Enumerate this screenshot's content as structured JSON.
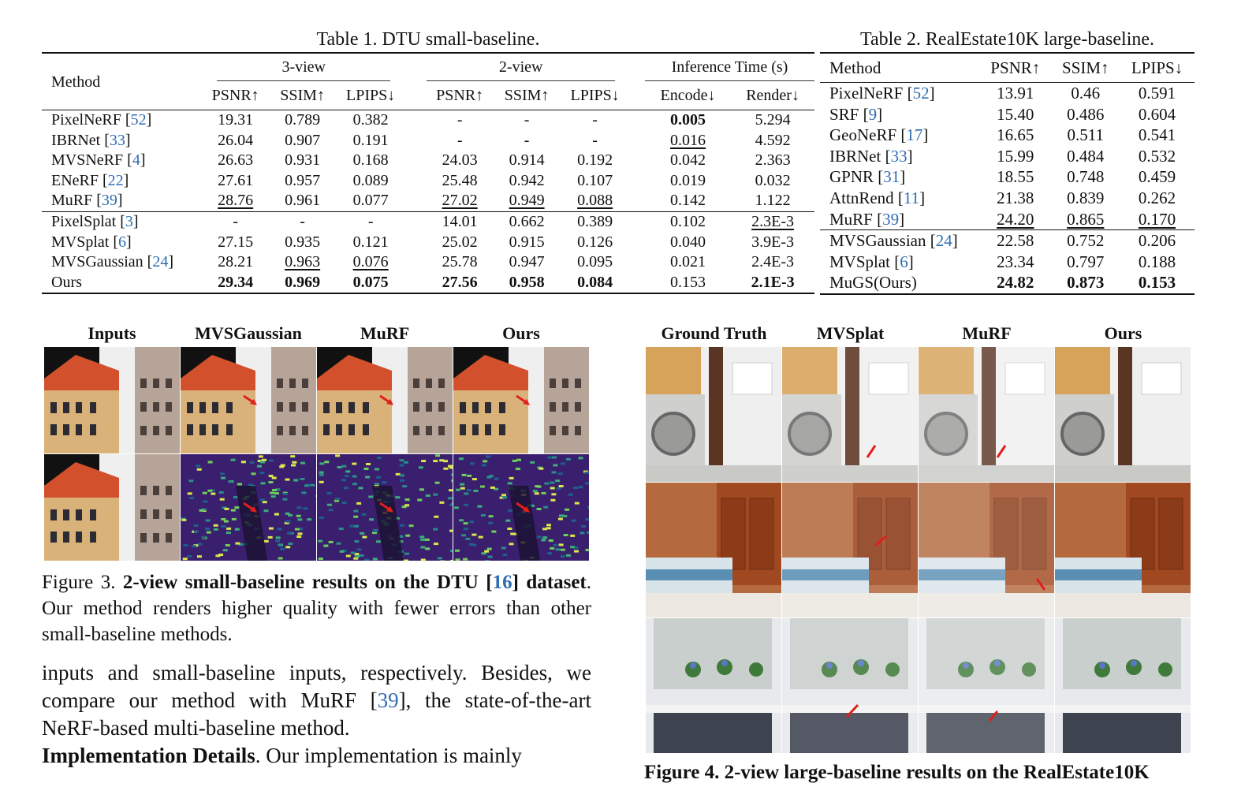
{
  "table1": {
    "caption": "Table 1. DTU small-baseline.",
    "method_header": "Method",
    "groups": [
      "3-view",
      "2-view",
      "Inference Time (s)"
    ],
    "subheaders": [
      "PSNR↑",
      "SSIM↑",
      "LPIPS↓",
      "PSNR↑",
      "SSIM↑",
      "LPIPS↓",
      "Encode↓",
      "Render↓"
    ],
    "rows_nerf": [
      {
        "name": "PixelNeRF",
        "ref": "52",
        "cells": [
          "19.31",
          "0.789",
          "0.382",
          "-",
          "-",
          "-",
          "0.005",
          "5.294"
        ],
        "style": [
          "",
          "",
          "",
          "",
          "",
          "",
          "b",
          ""
        ]
      },
      {
        "name": "IBRNet",
        "ref": "33",
        "cells": [
          "26.04",
          "0.907",
          "0.191",
          "-",
          "-",
          "-",
          "0.016",
          "4.592"
        ],
        "style": [
          "",
          "",
          "",
          "",
          "",
          "",
          "u",
          ""
        ]
      },
      {
        "name": "MVSNeRF",
        "ref": "4",
        "cells": [
          "26.63",
          "0.931",
          "0.168",
          "24.03",
          "0.914",
          "0.192",
          "0.042",
          "2.363"
        ],
        "style": [
          "",
          "",
          "",
          "",
          "",
          "",
          "",
          ""
        ]
      },
      {
        "name": "ENeRF",
        "ref": "22",
        "cells": [
          "27.61",
          "0.957",
          "0.089",
          "25.48",
          "0.942",
          "0.107",
          "0.019",
          "0.032"
        ],
        "style": [
          "",
          "",
          "",
          "",
          "",
          "",
          "",
          ""
        ]
      },
      {
        "name": "MuRF",
        "ref": "39",
        "cells": [
          "28.76",
          "0.961",
          "0.077",
          "27.02",
          "0.949",
          "0.088",
          "0.142",
          "1.122"
        ],
        "style": [
          "u",
          "",
          "",
          "u",
          "u",
          "u",
          "",
          ""
        ]
      }
    ],
    "rows_gs": [
      {
        "name": "PixelSplat",
        "ref": "3",
        "cells": [
          "-",
          "-",
          "-",
          "14.01",
          "0.662",
          "0.389",
          "0.102",
          "2.3E-3"
        ],
        "style": [
          "",
          "",
          "",
          "",
          "",
          "",
          "",
          "u"
        ]
      },
      {
        "name": "MVSplat",
        "ref": "6",
        "cells": [
          "27.15",
          "0.935",
          "0.121",
          "25.02",
          "0.915",
          "0.126",
          "0.040",
          "3.9E-3"
        ],
        "style": [
          "",
          "",
          "",
          "",
          "",
          "",
          "",
          ""
        ]
      },
      {
        "name": "MVSGaussian",
        "ref": "24",
        "cells": [
          "28.21",
          "0.963",
          "0.076",
          "25.78",
          "0.947",
          "0.095",
          "0.021",
          "2.4E-3"
        ],
        "style": [
          "",
          "u",
          "u",
          "",
          "",
          "",
          "",
          ""
        ]
      },
      {
        "name": "Ours",
        "ref": "",
        "cells": [
          "29.34",
          "0.969",
          "0.075",
          "27.56",
          "0.958",
          "0.084",
          "0.153",
          "2.1E-3"
        ],
        "style": [
          "b",
          "b",
          "b",
          "b",
          "b",
          "b",
          "",
          "b"
        ]
      }
    ]
  },
  "table2": {
    "caption": "Table 2. RealEstate10K large-baseline.",
    "headers": [
      "Method",
      "PSNR↑",
      "SSIM↑",
      "LPIPS↓"
    ],
    "rows_nerf": [
      {
        "name": "PixelNeRF",
        "ref": "52",
        "cells": [
          "13.91",
          "0.46",
          "0.591"
        ],
        "style": [
          "",
          "",
          ""
        ]
      },
      {
        "name": "SRF",
        "ref": "9",
        "cells": [
          "15.40",
          "0.486",
          "0.604"
        ],
        "style": [
          "",
          "",
          ""
        ]
      },
      {
        "name": "GeoNeRF",
        "ref": "17",
        "cells": [
          "16.65",
          "0.511",
          "0.541"
        ],
        "style": [
          "",
          "",
          ""
        ]
      },
      {
        "name": "IBRNet",
        "ref": "33",
        "cells": [
          "15.99",
          "0.484",
          "0.532"
        ],
        "style": [
          "",
          "",
          ""
        ]
      },
      {
        "name": "GPNR",
        "ref": "31",
        "cells": [
          "18.55",
          "0.748",
          "0.459"
        ],
        "style": [
          "",
          "",
          ""
        ]
      },
      {
        "name": "AttnRend",
        "ref": "11",
        "cells": [
          "21.38",
          "0.839",
          "0.262"
        ],
        "style": [
          "",
          "",
          ""
        ]
      },
      {
        "name": "MuRF",
        "ref": "39",
        "cells": [
          "24.20",
          "0.865",
          "0.170"
        ],
        "style": [
          "u",
          "u",
          "u"
        ]
      }
    ],
    "rows_gs": [
      {
        "name": "MVSGaussian",
        "ref": "24",
        "cells": [
          "22.58",
          "0.752",
          "0.206"
        ],
        "style": [
          "",
          "",
          ""
        ]
      },
      {
        "name": "MVSplat",
        "ref": "6",
        "cells": [
          "23.34",
          "0.797",
          "0.188"
        ],
        "style": [
          "",
          "",
          ""
        ]
      },
      {
        "name": "MuGS(Ours)",
        "ref": "",
        "cells": [
          "24.82",
          "0.873",
          "0.153"
        ],
        "style": [
          "b",
          "b",
          "b"
        ]
      }
    ]
  },
  "figure3": {
    "columns": [
      "Inputs",
      "MVSGaussian",
      "MuRF",
      "Ours"
    ],
    "caption_prefix": "Figure 3.",
    "caption_bold_a": "2-view small-baseline results on the DTU [",
    "caption_ref": "16",
    "caption_bold_b": "] dataset",
    "caption_rest": ". Our method renders higher quality with fewer errors than other small-baseline methods."
  },
  "figure4": {
    "columns": [
      "Ground Truth",
      "MVSplat",
      "MuRF",
      "Ours"
    ],
    "caption_partial": "Figure 4.   2-view large-baseline results on the RealEstate10K"
  },
  "body": {
    "para1_a": "inputs and small-baseline inputs, respectively. Besides, we compare our method with MuRF [",
    "para1_ref": "39",
    "para1_b": "], the state-of-the-art NeRF-based multi-baseline method.",
    "para2_bold": "Implementation Details",
    "para2_rest": ".  Our implementation is mainly"
  },
  "colors": {
    "cite": "#2f6db3",
    "arrow": "#e0201b",
    "text": "#111111"
  }
}
